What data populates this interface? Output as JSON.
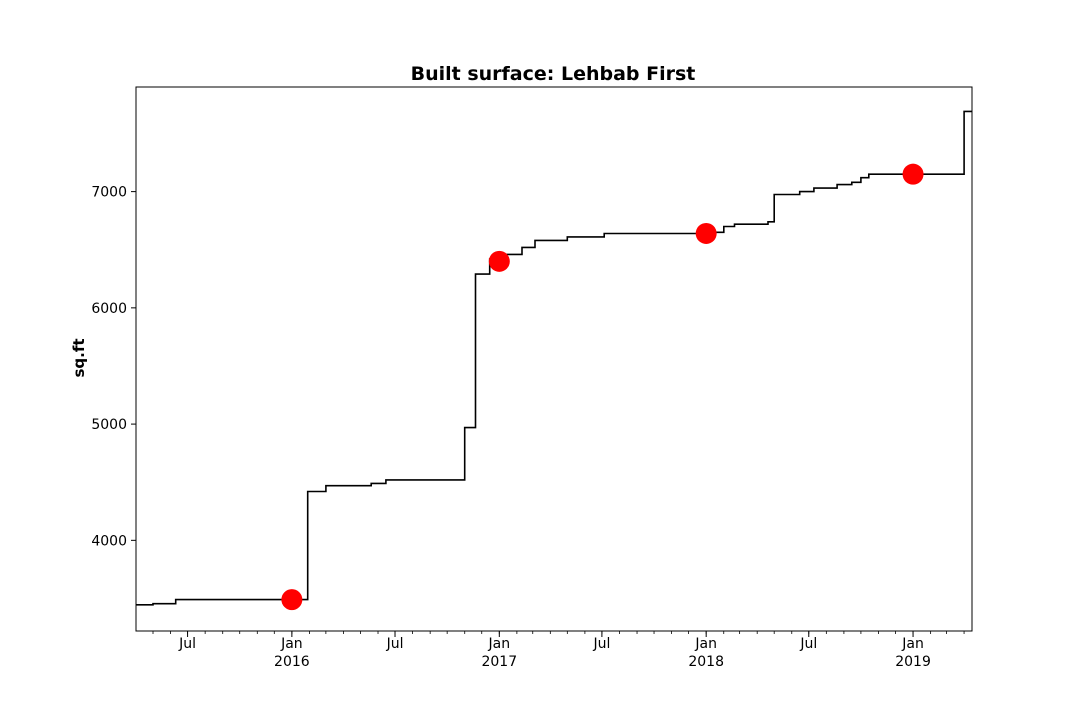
{
  "chart_data": {
    "type": "line",
    "title": "Built surface: Lehbab First",
    "xlabel": "",
    "ylabel": "sq.ft",
    "xlim": [
      "2015-04-01",
      "2019-04-15"
    ],
    "ylim": [
      3220,
      7900
    ],
    "grid": false,
    "legend": "none",
    "line_color": "#000000",
    "marker_color": "#ff0000",
    "y_ticks": [
      4000,
      5000,
      6000,
      7000
    ],
    "y_tick_labels": [
      "4000",
      "5000",
      "6000",
      "7000"
    ],
    "x_ticks": [
      {
        "date": "2015-07-01",
        "label": "Jul",
        "sublabel": ""
      },
      {
        "date": "2016-01-01",
        "label": "Jan",
        "sublabel": "2016"
      },
      {
        "date": "2016-07-01",
        "label": "Jul",
        "sublabel": ""
      },
      {
        "date": "2017-01-01",
        "label": "Jan",
        "sublabel": "2017"
      },
      {
        "date": "2017-07-01",
        "label": "Jul",
        "sublabel": ""
      },
      {
        "date": "2018-01-01",
        "label": "Jan",
        "sublabel": "2018"
      },
      {
        "date": "2018-07-01",
        "label": "Jul",
        "sublabel": ""
      },
      {
        "date": "2019-01-01",
        "label": "Jan",
        "sublabel": "2019"
      }
    ],
    "series": [
      {
        "values": [
          {
            "x": "2015-04-01",
            "y": 3445
          },
          {
            "x": "2015-05-01",
            "y": 3455
          },
          {
            "x": "2015-06-10",
            "y": 3490
          },
          {
            "x": "2016-01-29",
            "y": 4420
          },
          {
            "x": "2016-03-01",
            "y": 4470
          },
          {
            "x": "2016-05-20",
            "y": 4490
          },
          {
            "x": "2016-06-15",
            "y": 4520
          },
          {
            "x": "2016-11-01",
            "y": 4970
          },
          {
            "x": "2016-11-20",
            "y": 6290
          },
          {
            "x": "2016-12-15",
            "y": 6420
          },
          {
            "x": "2017-01-03",
            "y": 6460
          },
          {
            "x": "2017-02-10",
            "y": 6520
          },
          {
            "x": "2017-03-05",
            "y": 6580
          },
          {
            "x": "2017-05-01",
            "y": 6610
          },
          {
            "x": "2017-07-05",
            "y": 6640
          },
          {
            "x": "2018-01-15",
            "y": 6650
          },
          {
            "x": "2018-02-01",
            "y": 6700
          },
          {
            "x": "2018-02-20",
            "y": 6720
          },
          {
            "x": "2018-04-20",
            "y": 6740
          },
          {
            "x": "2018-05-01",
            "y": 6975
          },
          {
            "x": "2018-06-15",
            "y": 7000
          },
          {
            "x": "2018-07-10",
            "y": 7030
          },
          {
            "x": "2018-08-20",
            "y": 7060
          },
          {
            "x": "2018-09-15",
            "y": 7080
          },
          {
            "x": "2018-10-01",
            "y": 7120
          },
          {
            "x": "2018-10-15",
            "y": 7150
          },
          {
            "x": "2019-04-01",
            "y": 7690
          },
          {
            "x": "2019-04-15",
            "y": 7690
          }
        ]
      },
      {
        "type": "scatter",
        "values": [
          {
            "x": "2016-01-01",
            "y": 3490
          },
          {
            "x": "2017-01-01",
            "y": 6400
          },
          {
            "x": "2018-01-01",
            "y": 6640
          },
          {
            "x": "2019-01-01",
            "y": 7150
          }
        ]
      }
    ]
  }
}
